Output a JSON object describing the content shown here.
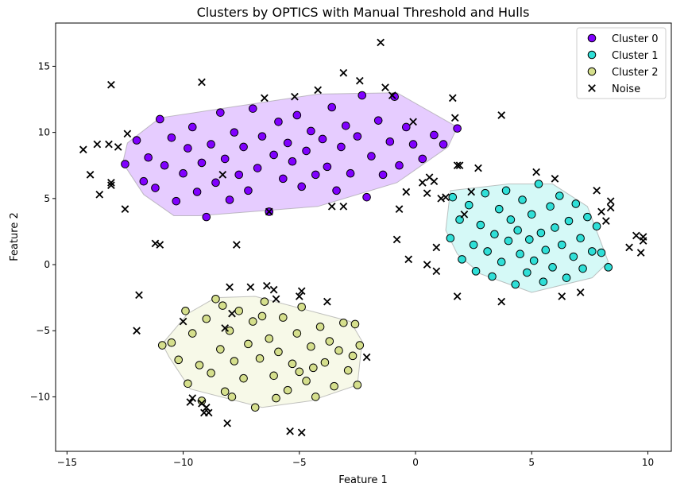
{
  "chart_data": {
    "type": "scatter",
    "title": "Clusters by OPTICS with Manual Threshold and Hulls",
    "xlabel": "Feature 1",
    "ylabel": "Feature 2",
    "xlim": [
      -15.49,
      11.01
    ],
    "ylim": [
      -14.12,
      18.27
    ],
    "xticks": [
      -15,
      -10,
      -5,
      0,
      5,
      10
    ],
    "yticks": [
      -10,
      -5,
      0,
      5,
      10,
      15
    ],
    "xtick_labels": [
      "−15",
      "−10",
      "−5",
      "0",
      "5",
      "10"
    ],
    "ytick_labels": [
      "−10",
      "−5",
      "0",
      "5",
      "10",
      "15"
    ],
    "grid": false,
    "legend_position": "top-right",
    "series": [
      {
        "name": "Cluster 0",
        "color": "#8000ff",
        "marker": "circle",
        "hull": [
          [
            -12.6,
            7.7
          ],
          [
            -12.4,
            9.2
          ],
          [
            -11.0,
            11.1
          ],
          [
            -4.2,
            12.9
          ],
          [
            -0.8,
            13.0
          ],
          [
            1.8,
            10.4
          ],
          [
            1.4,
            8.9
          ],
          [
            -0.8,
            6.2
          ],
          [
            -4.2,
            4.4
          ],
          [
            -9.3,
            3.7
          ],
          [
            -10.4,
            3.7
          ],
          [
            -11.7,
            5.3
          ]
        ],
        "points": [
          [
            -12.5,
            7.6
          ],
          [
            -12.0,
            9.4
          ],
          [
            -11.7,
            6.3
          ],
          [
            -11.5,
            8.1
          ],
          [
            -11.2,
            5.8
          ],
          [
            -11.0,
            11.0
          ],
          [
            -10.8,
            7.5
          ],
          [
            -10.5,
            9.6
          ],
          [
            -10.3,
            4.8
          ],
          [
            -10.0,
            6.9
          ],
          [
            -9.8,
            8.8
          ],
          [
            -9.6,
            10.4
          ],
          [
            -9.4,
            5.5
          ],
          [
            -9.2,
            7.7
          ],
          [
            -9.0,
            3.6
          ],
          [
            -8.8,
            9.1
          ],
          [
            -8.6,
            6.2
          ],
          [
            -8.4,
            11.5
          ],
          [
            -8.2,
            8.0
          ],
          [
            -8.0,
            4.9
          ],
          [
            -7.8,
            10.0
          ],
          [
            -7.6,
            6.8
          ],
          [
            -7.4,
            8.9
          ],
          [
            -7.2,
            5.6
          ],
          [
            -7.0,
            11.8
          ],
          [
            -6.8,
            7.3
          ],
          [
            -6.6,
            9.7
          ],
          [
            -6.3,
            4.0
          ],
          [
            -6.1,
            8.3
          ],
          [
            -5.9,
            10.8
          ],
          [
            -5.7,
            6.5
          ],
          [
            -5.5,
            9.2
          ],
          [
            -5.3,
            7.8
          ],
          [
            -5.1,
            11.3
          ],
          [
            -4.9,
            5.9
          ],
          [
            -4.7,
            8.6
          ],
          [
            -4.5,
            10.1
          ],
          [
            -4.3,
            6.8
          ],
          [
            -4.0,
            9.5
          ],
          [
            -3.8,
            7.4
          ],
          [
            -3.6,
            11.9
          ],
          [
            -3.4,
            5.6
          ],
          [
            -3.2,
            8.9
          ],
          [
            -3.0,
            10.5
          ],
          [
            -2.8,
            6.9
          ],
          [
            -2.5,
            9.7
          ],
          [
            -2.3,
            12.8
          ],
          [
            -2.1,
            5.1
          ],
          [
            -1.9,
            8.2
          ],
          [
            -1.6,
            10.9
          ],
          [
            -1.4,
            6.8
          ],
          [
            -1.1,
            9.3
          ],
          [
            -0.9,
            12.7
          ],
          [
            -0.7,
            7.5
          ],
          [
            -0.4,
            10.4
          ],
          [
            -0.1,
            9.1
          ],
          [
            0.3,
            8.0
          ],
          [
            0.8,
            9.8
          ],
          [
            1.2,
            9.1
          ],
          [
            1.8,
            10.3
          ]
        ]
      },
      {
        "name": "Cluster 1",
        "color": "#2fdfd7",
        "marker": "circle",
        "hull": [
          [
            1.5,
            5.6
          ],
          [
            4.0,
            6.1
          ],
          [
            5.9,
            6.1
          ],
          [
            7.4,
            4.4
          ],
          [
            8.3,
            0.2
          ],
          [
            7.6,
            -1.0
          ],
          [
            5.0,
            -2.1
          ],
          [
            2.8,
            -0.7
          ],
          [
            1.8,
            0.8
          ],
          [
            1.3,
            2.6
          ]
        ],
        "points": [
          [
            1.6,
            5.1
          ],
          [
            1.5,
            2.0
          ],
          [
            1.9,
            3.4
          ],
          [
            2.0,
            0.4
          ],
          [
            2.3,
            4.5
          ],
          [
            2.5,
            1.5
          ],
          [
            2.6,
            -0.5
          ],
          [
            2.8,
            3.0
          ],
          [
            3.0,
            5.4
          ],
          [
            3.1,
            1.0
          ],
          [
            3.3,
            -0.9
          ],
          [
            3.4,
            2.3
          ],
          [
            3.6,
            4.2
          ],
          [
            3.7,
            0.2
          ],
          [
            3.9,
            5.6
          ],
          [
            4.0,
            1.8
          ],
          [
            4.1,
            3.4
          ],
          [
            4.3,
            -1.5
          ],
          [
            4.4,
            2.6
          ],
          [
            4.5,
            0.8
          ],
          [
            4.6,
            4.9
          ],
          [
            4.8,
            -0.6
          ],
          [
            4.9,
            1.9
          ],
          [
            5.0,
            3.8
          ],
          [
            5.1,
            0.3
          ],
          [
            5.3,
            6.1
          ],
          [
            5.4,
            2.4
          ],
          [
            5.5,
            -1.3
          ],
          [
            5.6,
            1.1
          ],
          [
            5.8,
            4.4
          ],
          [
            5.9,
            -0.2
          ],
          [
            6.0,
            2.8
          ],
          [
            6.2,
            5.2
          ],
          [
            6.3,
            1.5
          ],
          [
            6.5,
            -1.0
          ],
          [
            6.6,
            3.3
          ],
          [
            6.8,
            0.6
          ],
          [
            6.9,
            4.6
          ],
          [
            7.1,
            2.0
          ],
          [
            7.2,
            -0.3
          ],
          [
            7.4,
            3.6
          ],
          [
            7.6,
            1.0
          ],
          [
            7.8,
            2.9
          ],
          [
            8.0,
            0.9
          ],
          [
            8.3,
            -0.2
          ]
        ]
      },
      {
        "name": "Cluster 2",
        "color": "#d5df8c",
        "marker": "circle",
        "hull": [
          [
            -10.9,
            -6.0
          ],
          [
            -9.8,
            -3.7
          ],
          [
            -8.6,
            -2.5
          ],
          [
            -6.9,
            -2.4
          ],
          [
            -2.8,
            -4.3
          ],
          [
            -2.3,
            -5.8
          ],
          [
            -2.5,
            -9.1
          ],
          [
            -4.5,
            -10.3
          ],
          [
            -6.6,
            -10.8
          ],
          [
            -9.7,
            -9.4
          ],
          [
            -10.6,
            -7.0
          ]
        ],
        "points": [
          [
            -10.9,
            -6.1
          ],
          [
            -10.5,
            -5.9
          ],
          [
            -10.2,
            -7.2
          ],
          [
            -9.9,
            -3.5
          ],
          [
            -9.8,
            -9.0
          ],
          [
            -9.6,
            -5.2
          ],
          [
            -9.3,
            -7.6
          ],
          [
            -9.0,
            -4.1
          ],
          [
            -8.8,
            -8.2
          ],
          [
            -8.6,
            -2.6
          ],
          [
            -8.4,
            -6.4
          ],
          [
            -8.2,
            -9.6
          ],
          [
            -8.0,
            -5.0
          ],
          [
            -7.8,
            -7.3
          ],
          [
            -7.6,
            -3.5
          ],
          [
            -7.4,
            -8.6
          ],
          [
            -7.2,
            -6.0
          ],
          [
            -7.0,
            -4.3
          ],
          [
            -6.9,
            -10.8
          ],
          [
            -6.7,
            -7.1
          ],
          [
            -6.5,
            -2.8
          ],
          [
            -6.3,
            -5.6
          ],
          [
            -6.1,
            -8.4
          ],
          [
            -5.9,
            -6.6
          ],
          [
            -5.7,
            -4.0
          ],
          [
            -5.5,
            -9.5
          ],
          [
            -5.3,
            -7.5
          ],
          [
            -5.1,
            -5.2
          ],
          [
            -4.9,
            -3.2
          ],
          [
            -4.7,
            -8.8
          ],
          [
            -4.5,
            -6.2
          ],
          [
            -4.3,
            -10.0
          ],
          [
            -4.1,
            -4.7
          ],
          [
            -3.9,
            -7.4
          ],
          [
            -3.7,
            -5.8
          ],
          [
            -3.5,
            -9.2
          ],
          [
            -3.3,
            -6.5
          ],
          [
            -3.1,
            -4.4
          ],
          [
            -2.9,
            -8.0
          ],
          [
            -2.7,
            -6.9
          ],
          [
            -2.5,
            -9.1
          ],
          [
            -2.4,
            -6.1
          ],
          [
            -2.6,
            -4.5
          ],
          [
            -6.0,
            -10.1
          ],
          [
            -7.9,
            -10.0
          ],
          [
            -9.2,
            -10.3
          ],
          [
            -8.3,
            -3.1
          ],
          [
            -6.6,
            -3.9
          ],
          [
            -5.0,
            -8.1
          ],
          [
            -4.4,
            -7.8
          ]
        ]
      },
      {
        "name": "Noise",
        "color": "#000000",
        "marker": "x",
        "points": [
          [
            -14.3,
            8.7
          ],
          [
            -13.1,
            13.6
          ],
          [
            -9.2,
            13.8
          ],
          [
            -13.7,
            9.1
          ],
          [
            -13.2,
            9.1
          ],
          [
            -12.8,
            8.9
          ],
          [
            -14.0,
            6.8
          ],
          [
            -13.6,
            5.3
          ],
          [
            -13.1,
            6.2
          ],
          [
            -13.1,
            6.0
          ],
          [
            -12.5,
            4.2
          ],
          [
            -12.4,
            9.9
          ],
          [
            -11.2,
            1.6
          ],
          [
            -11.0,
            1.5
          ],
          [
            -7.7,
            1.5
          ],
          [
            -6.5,
            12.6
          ],
          [
            -5.2,
            12.7
          ],
          [
            -4.2,
            13.2
          ],
          [
            -3.1,
            14.5
          ],
          [
            -2.4,
            13.9
          ],
          [
            -1.5,
            16.8
          ],
          [
            -1.3,
            13.4
          ],
          [
            -1.0,
            12.8
          ],
          [
            -0.1,
            10.8
          ],
          [
            1.6,
            12.6
          ],
          [
            1.7,
            11.1
          ],
          [
            3.7,
            11.3
          ],
          [
            1.8,
            7.5
          ],
          [
            1.9,
            7.5
          ],
          [
            2.7,
            7.3
          ],
          [
            5.2,
            7.0
          ],
          [
            6.0,
            6.5
          ],
          [
            7.8,
            5.6
          ],
          [
            8.0,
            4.0
          ],
          [
            8.4,
            4.8
          ],
          [
            8.4,
            4.3
          ],
          [
            8.2,
            3.3
          ],
          [
            9.5,
            2.2
          ],
          [
            9.8,
            2.1
          ],
          [
            9.2,
            1.3
          ],
          [
            9.7,
            0.9
          ],
          [
            9.8,
            1.8
          ],
          [
            -0.4,
            5.5
          ],
          [
            0.3,
            6.2
          ],
          [
            0.6,
            6.6
          ],
          [
            0.8,
            6.3
          ],
          [
            0.5,
            5.4
          ],
          [
            1.1,
            5.0
          ],
          [
            1.3,
            5.1
          ],
          [
            -0.7,
            4.2
          ],
          [
            2.4,
            5.5
          ],
          [
            2.1,
            3.8
          ],
          [
            -0.8,
            1.9
          ],
          [
            -0.3,
            0.4
          ],
          [
            0.5,
            0.0
          ],
          [
            0.9,
            -0.5
          ],
          [
            0.9,
            1.3
          ],
          [
            1.8,
            -2.4
          ],
          [
            3.7,
            -2.8
          ],
          [
            6.3,
            -2.4
          ],
          [
            7.1,
            -2.1
          ],
          [
            -2.1,
            -7.0
          ],
          [
            -3.6,
            4.4
          ],
          [
            -3.1,
            4.4
          ],
          [
            -8.3,
            6.8
          ],
          [
            -6.3,
            4.0
          ],
          [
            -11.9,
            -2.3
          ],
          [
            -12.0,
            -5.0
          ],
          [
            -8.0,
            -1.7
          ],
          [
            -7.1,
            -1.7
          ],
          [
            -6.4,
            -1.6
          ],
          [
            -6.1,
            -1.9
          ],
          [
            -6.0,
            -2.6
          ],
          [
            -4.9,
            -2.0
          ],
          [
            -5.0,
            -2.4
          ],
          [
            -3.8,
            -2.8
          ],
          [
            -7.9,
            -3.7
          ],
          [
            -10.0,
            -4.3
          ],
          [
            -8.2,
            -4.8
          ],
          [
            -9.7,
            -10.4
          ],
          [
            -9.6,
            -10.1
          ],
          [
            -9.2,
            -10.5
          ],
          [
            -9.0,
            -10.8
          ],
          [
            -9.1,
            -11.2
          ],
          [
            -8.9,
            -11.2
          ],
          [
            -8.1,
            -12.0
          ],
          [
            -5.4,
            -12.6
          ],
          [
            -4.9,
            -12.7
          ]
        ]
      }
    ]
  }
}
